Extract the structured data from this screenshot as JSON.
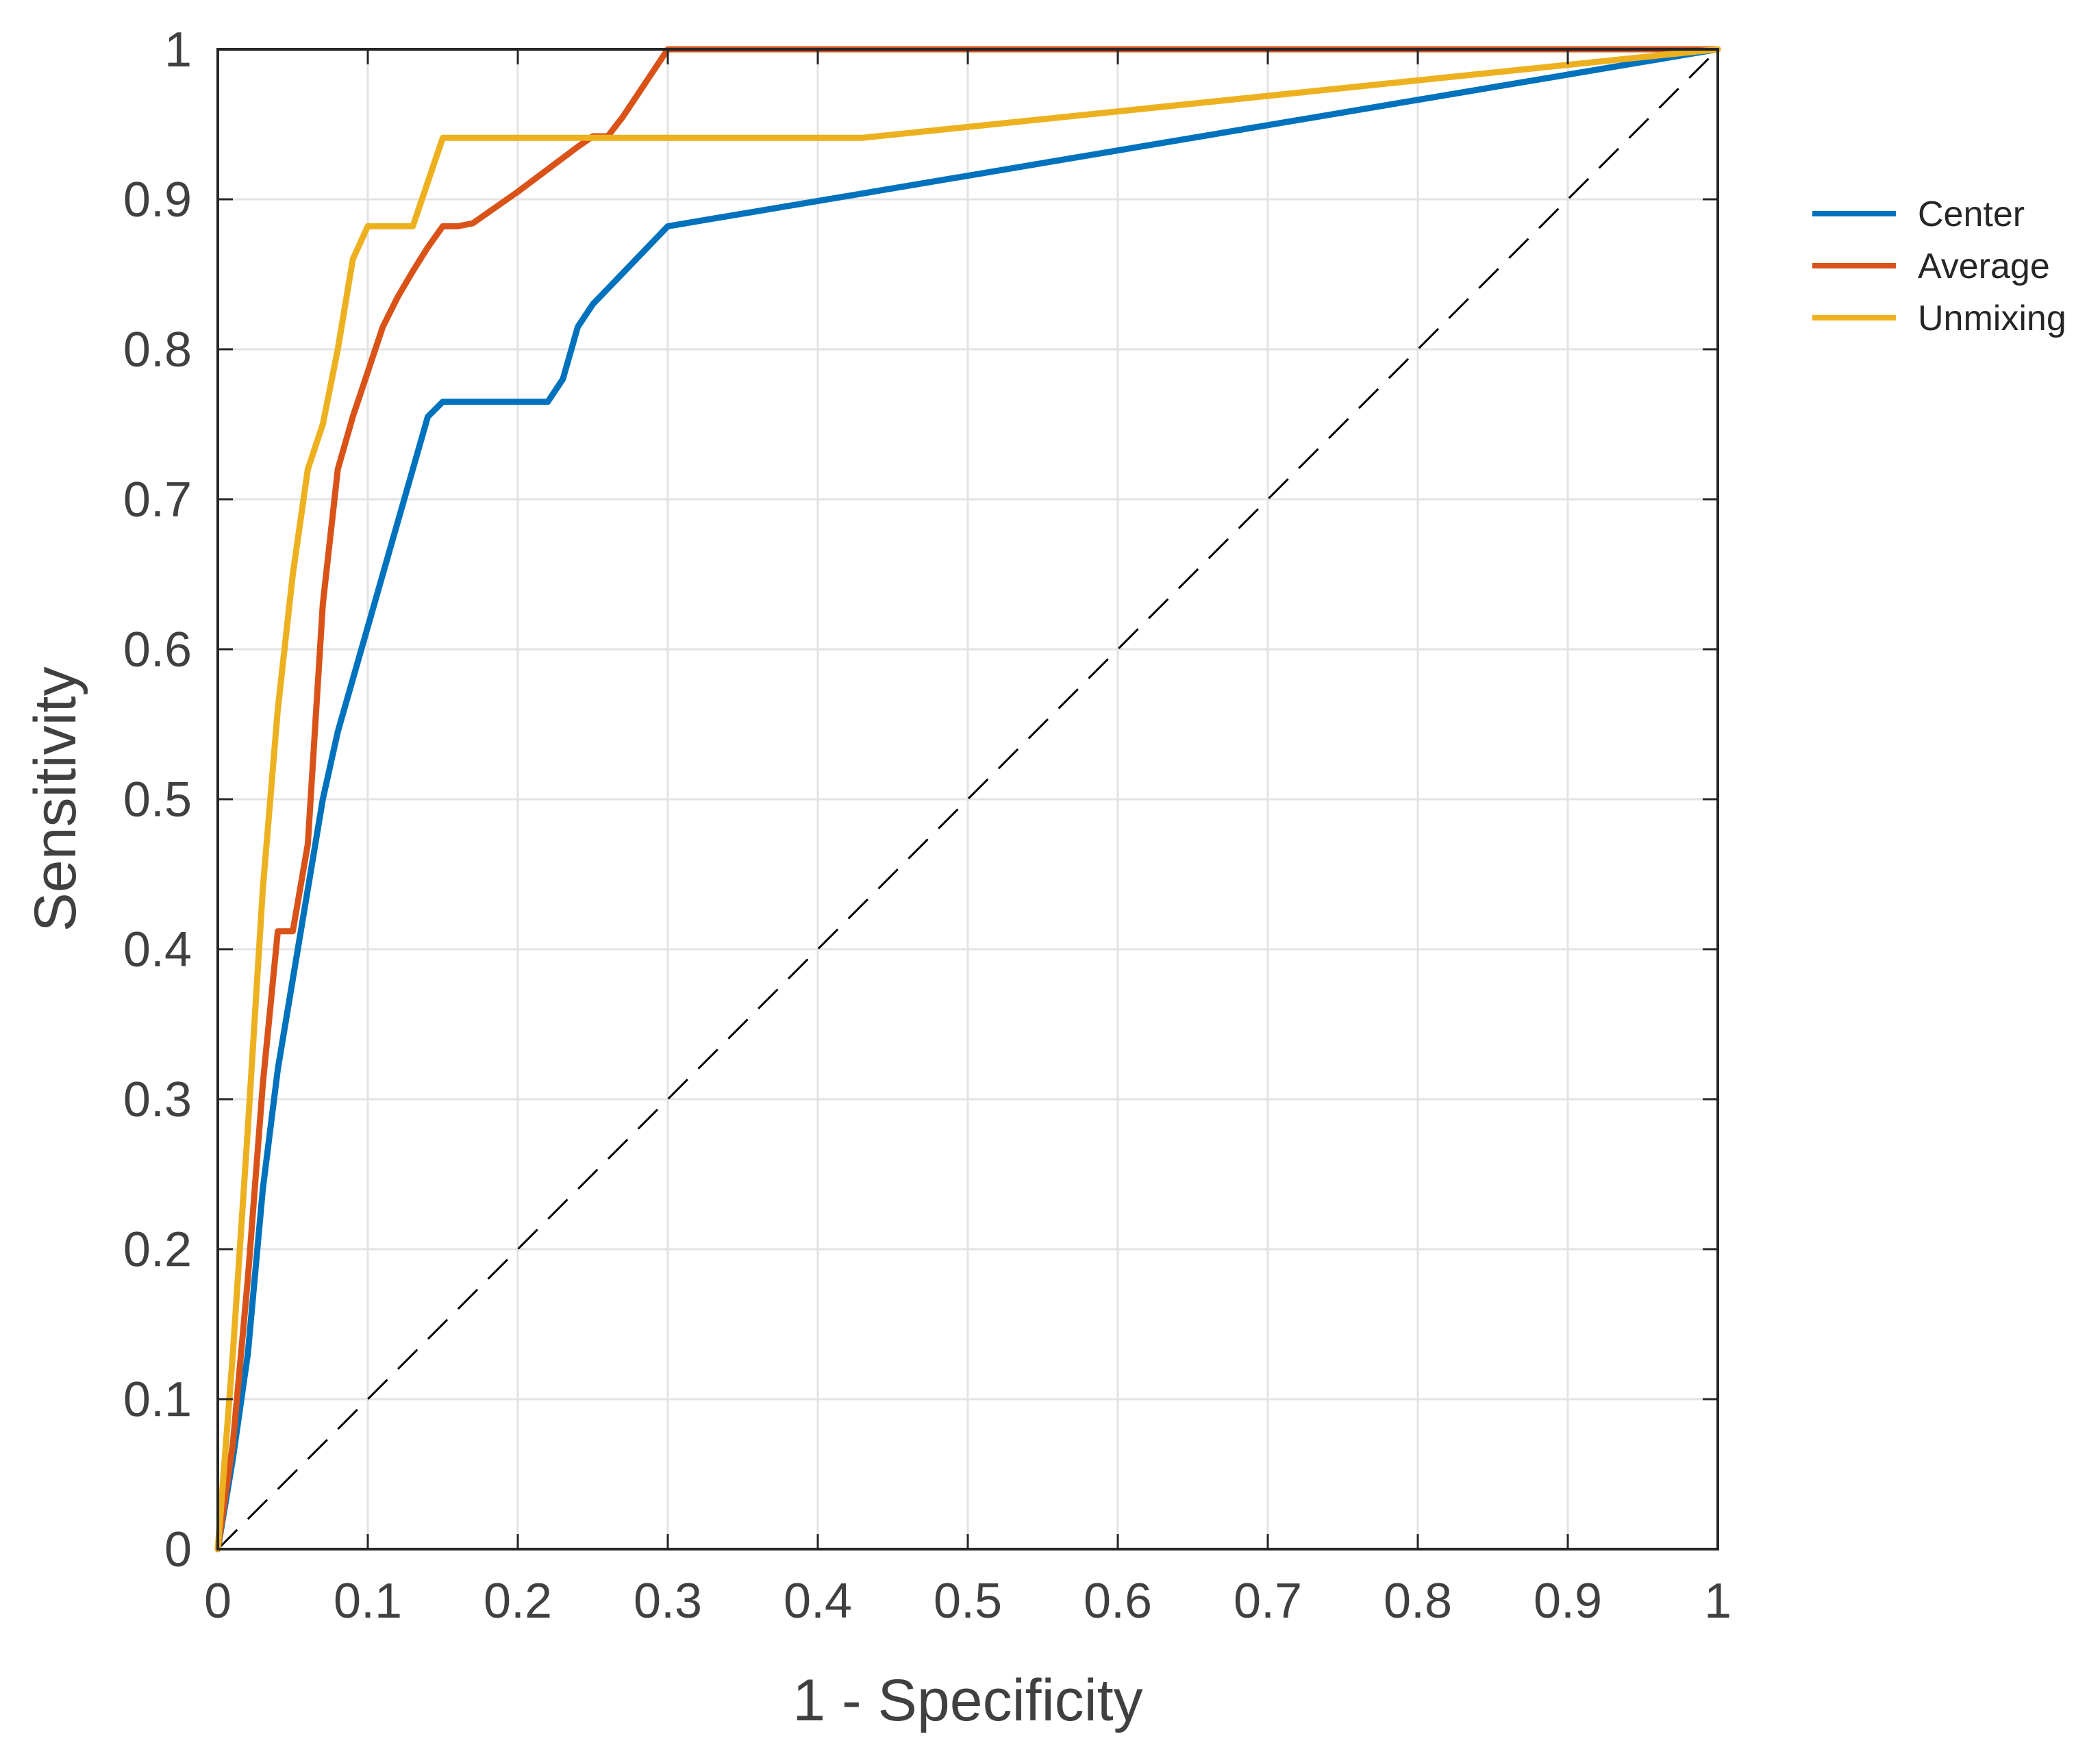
{
  "chart_data": {
    "type": "line",
    "title": "",
    "xlabel": "1 - Specificity",
    "ylabel": "Sensitivity",
    "xlim": [
      0,
      1
    ],
    "ylim": [
      0,
      1
    ],
    "grid": true,
    "legend_position": "right",
    "xticks": [
      0,
      0.1,
      0.2,
      0.3,
      0.4,
      0.5,
      0.6,
      0.7,
      0.8,
      0.9,
      1
    ],
    "yticks": [
      0,
      0.1,
      0.2,
      0.3,
      0.4,
      0.5,
      0.6,
      0.7,
      0.8,
      0.9,
      1
    ],
    "xtick_labels": [
      "0",
      "0.1",
      "0.2",
      "0.3",
      "0.4",
      "0.5",
      "0.6",
      "0.7",
      "0.8",
      "0.9",
      "1"
    ],
    "ytick_labels": [
      "0",
      "0.1",
      "0.2",
      "0.3",
      "0.4",
      "0.5",
      "0.6",
      "0.7",
      "0.8",
      "0.9",
      "1"
    ],
    "series": [
      {
        "name": "Center",
        "color": "#0072BD",
        "x": [
          0,
          0.01,
          0.02,
          0.03,
          0.04,
          0.05,
          0.06,
          0.07,
          0.08,
          0.09,
          0.1,
          0.11,
          0.12,
          0.13,
          0.14,
          0.15,
          0.16,
          0.2,
          0.22,
          0.23,
          0.24,
          0.25,
          0.3,
          1
        ],
        "y": [
          0,
          0.06,
          0.13,
          0.24,
          0.32,
          0.38,
          0.44,
          0.5,
          0.545,
          0.58,
          0.615,
          0.65,
          0.685,
          0.72,
          0.755,
          0.765,
          0.765,
          0.765,
          0.765,
          0.78,
          0.815,
          0.83,
          0.882,
          1
        ]
      },
      {
        "name": "Average",
        "color": "#D95319",
        "x": [
          0,
          0.01,
          0.02,
          0.03,
          0.04,
          0.05,
          0.06,
          0.07,
          0.08,
          0.09,
          0.1,
          0.11,
          0.12,
          0.13,
          0.14,
          0.15,
          0.16,
          0.17,
          0.2,
          0.24,
          0.25,
          0.26,
          0.27,
          0.28,
          0.3,
          1
        ],
        "y": [
          0,
          0.07,
          0.18,
          0.31,
          0.412,
          0.412,
          0.47,
          0.63,
          0.72,
          0.755,
          0.785,
          0.815,
          0.835,
          0.852,
          0.868,
          0.882,
          0.882,
          0.884,
          0.905,
          0.935,
          0.942,
          0.942,
          0.955,
          0.97,
          1,
          1
        ]
      },
      {
        "name": "Unmixing",
        "color": "#EDB120",
        "x": [
          0,
          0.01,
          0.02,
          0.03,
          0.04,
          0.05,
          0.06,
          0.07,
          0.08,
          0.09,
          0.1,
          0.13,
          0.15,
          0.2,
          0.3,
          0.43,
          1
        ],
        "y": [
          0,
          0.13,
          0.28,
          0.44,
          0.56,
          0.65,
          0.72,
          0.75,
          0.8,
          0.86,
          0.882,
          0.882,
          0.941,
          0.941,
          0.941,
          0.941,
          1
        ]
      }
    ],
    "reference_line": {
      "name": "chance",
      "color": "#000000",
      "x": [
        0,
        1
      ],
      "y": [
        0,
        1
      ],
      "style": "dashed"
    }
  }
}
